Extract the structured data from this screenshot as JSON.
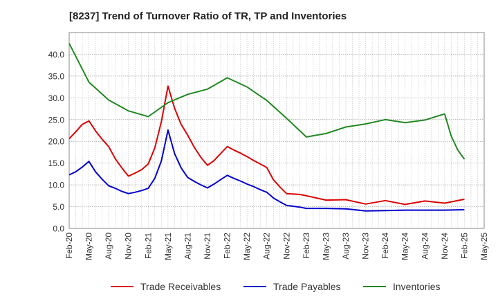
{
  "chart_data": {
    "type": "line",
    "title": "[8237]  Trend of Turnover Ratio of TR, TP and Inventories",
    "xlabel": "",
    "ylabel": "",
    "ylim": [
      0,
      45
    ],
    "yticks": [
      0,
      5,
      10,
      15,
      20,
      25,
      30,
      35,
      40
    ],
    "ytick_labels": [
      "0.0",
      "5.0",
      "10.0",
      "15.0",
      "20.0",
      "25.0",
      "30.0",
      "35.0",
      "40.0"
    ],
    "x_ticks": [
      "Feb-20",
      "May-20",
      "Aug-20",
      "Nov-20",
      "Feb-21",
      "May-21",
      "Aug-21",
      "Nov-21",
      "Feb-22",
      "May-22",
      "Aug-22",
      "Nov-22",
      "Feb-23",
      "May-23",
      "Aug-23",
      "Nov-23",
      "Feb-24",
      "May-24",
      "Aug-24",
      "Nov-24",
      "Feb-25",
      "May-25"
    ],
    "grid": true,
    "legend_position": "bottom",
    "series": [
      {
        "name": "Trade Receivables",
        "color": "#dd0000",
        "values": [
          [
            0,
            20.6
          ],
          [
            1,
            22.2
          ],
          [
            2,
            23.9
          ],
          [
            3,
            24.7
          ],
          [
            4,
            22.4
          ],
          [
            5,
            20.5
          ],
          [
            6,
            18.8
          ],
          [
            7,
            16.0
          ],
          [
            8,
            13.9
          ],
          [
            9,
            12.0
          ],
          [
            10,
            12.7
          ],
          [
            11,
            13.5
          ],
          [
            12,
            14.8
          ],
          [
            13,
            18.5
          ],
          [
            14,
            24.5
          ],
          [
            15,
            32.7
          ],
          [
            16,
            27.6
          ],
          [
            17,
            23.9
          ],
          [
            18,
            21.4
          ],
          [
            19,
            18.6
          ],
          [
            20,
            16.3
          ],
          [
            21,
            14.5
          ],
          [
            22,
            15.6
          ],
          [
            23,
            17.2
          ],
          [
            24,
            18.8
          ],
          [
            25,
            18.0
          ],
          [
            26,
            17.3
          ],
          [
            27,
            16.5
          ],
          [
            28,
            15.6
          ],
          [
            29,
            14.8
          ],
          [
            30,
            14.0
          ],
          [
            31,
            11.2
          ],
          [
            32,
            9.5
          ],
          [
            33,
            8.0
          ],
          [
            35,
            7.8
          ],
          [
            36,
            7.5
          ],
          [
            39,
            6.5
          ],
          [
            42,
            6.6
          ],
          [
            45,
            5.6
          ],
          [
            48,
            6.4
          ],
          [
            51,
            5.5
          ],
          [
            54,
            6.3
          ],
          [
            57,
            5.8
          ],
          [
            60,
            6.7
          ]
        ]
      },
      {
        "name": "Trade Payables",
        "color": "#0000cc",
        "values": [
          [
            0,
            12.3
          ],
          [
            1,
            13.0
          ],
          [
            2,
            14.1
          ],
          [
            3,
            15.4
          ],
          [
            4,
            13.0
          ],
          [
            5,
            11.3
          ],
          [
            6,
            9.8
          ],
          [
            7,
            9.2
          ],
          [
            8,
            8.5
          ],
          [
            9,
            8.0
          ],
          [
            10,
            8.3
          ],
          [
            11,
            8.7
          ],
          [
            12,
            9.2
          ],
          [
            13,
            11.5
          ],
          [
            14,
            15.5
          ],
          [
            15,
            22.6
          ],
          [
            16,
            17.2
          ],
          [
            17,
            13.9
          ],
          [
            18,
            11.7
          ],
          [
            19,
            10.8
          ],
          [
            20,
            10.0
          ],
          [
            21,
            9.3
          ],
          [
            22,
            10.2
          ],
          [
            23,
            11.2
          ],
          [
            24,
            12.2
          ],
          [
            25,
            11.5
          ],
          [
            26,
            10.9
          ],
          [
            27,
            10.2
          ],
          [
            28,
            9.6
          ],
          [
            29,
            8.9
          ],
          [
            30,
            8.3
          ],
          [
            31,
            7.0
          ],
          [
            32,
            6.1
          ],
          [
            33,
            5.3
          ],
          [
            35,
            4.9
          ],
          [
            36,
            4.6
          ],
          [
            39,
            4.6
          ],
          [
            42,
            4.5
          ],
          [
            45,
            4.0
          ],
          [
            48,
            4.1
          ],
          [
            51,
            4.2
          ],
          [
            54,
            4.2
          ],
          [
            57,
            4.2
          ],
          [
            60,
            4.3
          ]
        ]
      },
      {
        "name": "Inventories",
        "color": "#228822",
        "values": [
          [
            0,
            42.5
          ],
          [
            3,
            33.6
          ],
          [
            6,
            29.5
          ],
          [
            9,
            27.0
          ],
          [
            12,
            25.7
          ],
          [
            15,
            28.9
          ],
          [
            18,
            30.8
          ],
          [
            21,
            32.0
          ],
          [
            24,
            34.6
          ],
          [
            27,
            32.5
          ],
          [
            30,
            29.4
          ],
          [
            33,
            25.3
          ],
          [
            36,
            21.0
          ],
          [
            39,
            21.8
          ],
          [
            42,
            23.3
          ],
          [
            45,
            24.0
          ],
          [
            48,
            25.0
          ],
          [
            51,
            24.3
          ],
          [
            54,
            24.9
          ],
          [
            57,
            26.3
          ],
          [
            58,
            21.2
          ],
          [
            59,
            18.0
          ],
          [
            60,
            15.9
          ]
        ]
      }
    ]
  }
}
